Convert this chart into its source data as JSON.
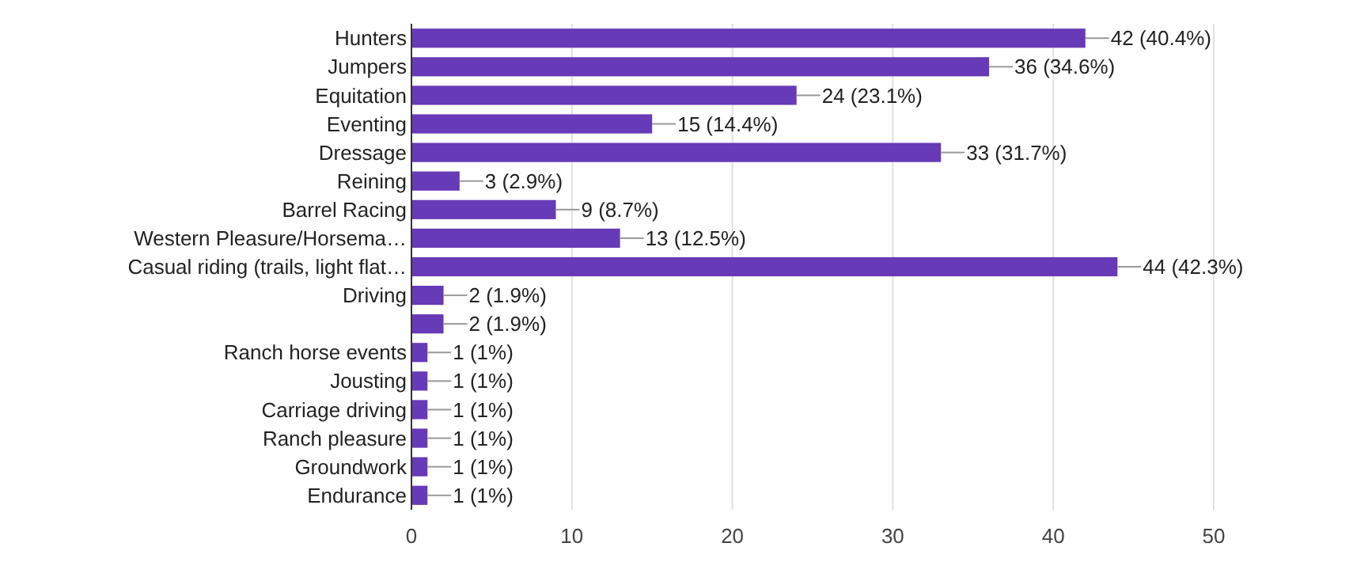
{
  "chart_data": {
    "type": "bar",
    "orientation": "horizontal",
    "categories": [
      "Hunters",
      "Jumpers",
      "Equitation",
      "Eventing",
      "Dressage",
      "Reining",
      "Barrel Racing",
      "Western Pleasure/Horsema…",
      "Casual riding (trails, light flat…",
      "Driving",
      null,
      "Ranch horse events",
      "Jousting",
      "Carriage driving",
      "Ranch pleasure",
      "Groundwork",
      "Endurance"
    ],
    "values": [
      42,
      36,
      24,
      15,
      33,
      3,
      9,
      13,
      44,
      2,
      2,
      1,
      1,
      1,
      1,
      1,
      1
    ],
    "value_labels": [
      "42 (40.4%)",
      "36 (34.6%)",
      "24 (23.1%)",
      "15 (14.4%)",
      "33 (31.7%)",
      "3 (2.9%)",
      "9 (8.7%)",
      "13 (12.5%)",
      "44 (42.3%)",
      "2 (1.9%)",
      "2 (1.9%)",
      "1 (1%)",
      "1 (1%)",
      "1 (1%)",
      "1 (1%)",
      "1 (1%)",
      "1 (1%)"
    ],
    "color": "#673ab7",
    "xlim": [
      0,
      50
    ],
    "xticks": [
      0,
      10,
      20,
      30,
      40,
      50
    ],
    "grid": "x"
  }
}
